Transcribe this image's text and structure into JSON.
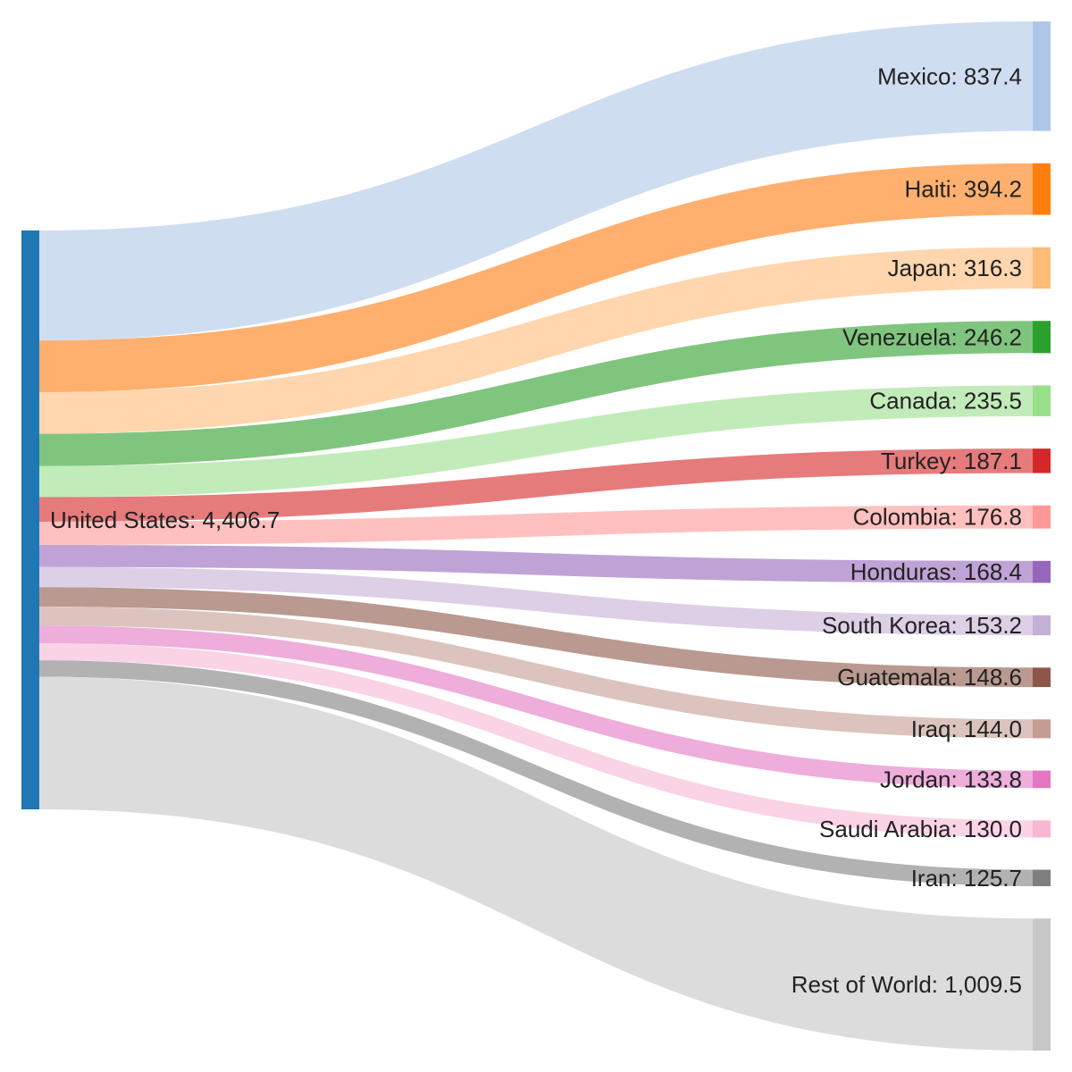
{
  "chart_data": {
    "type": "sankey",
    "source": {
      "name": "United States",
      "value": 4406.7,
      "label": "United States: 4,406.7",
      "color": "#1f77b4"
    },
    "targets": [
      {
        "name": "Mexico",
        "value": 837.4,
        "label": "Mexico: 837.4",
        "node_color": "#aec7e8",
        "link_color": "#cfddf1"
      },
      {
        "name": "Haiti",
        "value": 394.2,
        "label": "Haiti: 394.2",
        "node_color": "#ff7f0e",
        "link_color": "#ffb06e"
      },
      {
        "name": "Japan",
        "value": 316.3,
        "label": "Japan: 316.3",
        "node_color": "#ffbb78",
        "link_color": "#ffd6ad"
      },
      {
        "name": "Venezuela",
        "value": 246.2,
        "label": "Venezuela: 246.2",
        "node_color": "#2ca02c",
        "link_color": "#80c57e"
      },
      {
        "name": "Canada",
        "value": 235.5,
        "label": "Canada: 235.5",
        "node_color": "#98df8a",
        "link_color": "#c2ebba"
      },
      {
        "name": "Turkey",
        "value": 187.1,
        "label": "Turkey: 187.1",
        "node_color": "#d62728",
        "link_color": "#e67b7c"
      },
      {
        "name": "Colombia",
        "value": 176.8,
        "label": "Colombia: 176.8",
        "node_color": "#ff9896",
        "link_color": "#ffc0bf"
      },
      {
        "name": "Honduras",
        "value": 168.4,
        "label": "Honduras: 168.4",
        "node_color": "#9467bd",
        "link_color": "#bfa3d7"
      },
      {
        "name": "South Korea",
        "value": 153.2,
        "label": "South Korea: 153.2",
        "node_color": "#c5b0d5",
        "link_color": "#dccfe6"
      },
      {
        "name": "Guatemala",
        "value": 148.6,
        "label": "Guatemala: 148.6",
        "node_color": "#8c564b",
        "link_color": "#b99990"
      },
      {
        "name": "Iraq",
        "value": 144.0,
        "label": "Iraq: 144.0",
        "node_color": "#c49c94",
        "link_color": "#dcc3be"
      },
      {
        "name": "Jordan",
        "value": 133.8,
        "label": "Jordan: 133.8",
        "node_color": "#e377c2",
        "link_color": "#eeaddb"
      },
      {
        "name": "Saudi Arabia",
        "value": 130.0,
        "label": "Saudi Arabia: 130.0",
        "node_color": "#f7b6d2",
        "link_color": "#fad3e4"
      },
      {
        "name": "Iran",
        "value": 125.7,
        "label": "Iran: 125.7",
        "node_color": "#7f7f7f",
        "link_color": "#b2b2b2"
      },
      {
        "name": "Rest of World",
        "value": 1009.5,
        "label": "Rest of World: 1,009.5",
        "node_color": "#c7c7c7",
        "link_color": "#dcdcdc"
      }
    ]
  }
}
